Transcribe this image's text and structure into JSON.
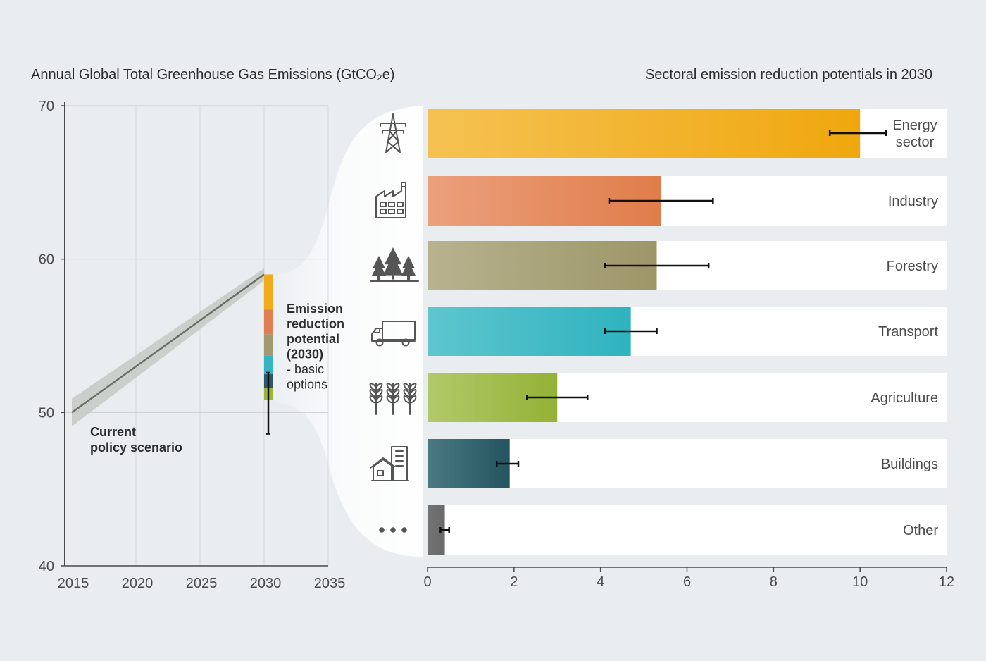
{
  "chart_data": [
    {
      "type": "line",
      "title": "Annual Global Total Greenhouse Gas Emissions (GtCO₂e)",
      "xlim": [
        2015,
        2035
      ],
      "ylim": [
        40,
        70
      ],
      "x_ticks": [
        "2015",
        "2020",
        "2025",
        "2030",
        "2035"
      ],
      "y_ticks": [
        "40",
        "50",
        "60",
        "70"
      ],
      "grid": true,
      "series": [
        {
          "name": "Current policy scenario",
          "x": [
            2015,
            2030
          ],
          "y": [
            50,
            59
          ],
          "band_low": [
            49.1,
            58.6
          ],
          "band_high": [
            50.9,
            59.4
          ]
        }
      ],
      "label_lines": [
        "Current",
        "policy scenario"
      ],
      "stacked_bar": {
        "x": 2030,
        "label_bold_lines": [
          "Emission",
          "reduction",
          "potential",
          "(2030)"
        ],
        "label_normal_lines": [
          "- basic",
          "options"
        ],
        "segments": [
          {
            "sector": "Energy sector",
            "from": 59,
            "to": 56.7,
            "color": "#f2ab1d"
          },
          {
            "sector": "Industry",
            "from": 56.7,
            "to": 55.1,
            "color": "#e07f52"
          },
          {
            "sector": "Forestry",
            "from": 55.1,
            "to": 53.7,
            "color": "#a09a73"
          },
          {
            "sector": "Transport",
            "from": 53.7,
            "to": 52.5,
            "color": "#37b4c1"
          },
          {
            "sector": "Buildings",
            "from": 52.5,
            "to": 51.6,
            "color": "#2b5a66"
          },
          {
            "sector": "Agriculture",
            "from": 51.6,
            "to": 50.8,
            "color": "#9cb43a"
          }
        ],
        "error": [
          48.6,
          52.6
        ]
      }
    },
    {
      "type": "bar",
      "orientation": "horizontal",
      "title": "Sectoral emission reduction potentials in 2030",
      "categories": [
        "Energy sector",
        "Industry",
        "Forestry",
        "Transport",
        "Agriculture",
        "Buildings",
        "Other"
      ],
      "category_lines": [
        [
          "Energy",
          "sector"
        ],
        [
          "Industry"
        ],
        [
          "Forestry"
        ],
        [
          "Transport"
        ],
        [
          "Agriculture"
        ],
        [
          "Buildings"
        ],
        [
          "Other"
        ]
      ],
      "values": [
        10.0,
        5.4,
        5.3,
        4.7,
        3.0,
        1.9,
        0.4
      ],
      "error_low": [
        9.3,
        4.2,
        4.1,
        4.1,
        2.3,
        1.6,
        0.3
      ],
      "error_high": [
        10.6,
        6.6,
        6.5,
        5.3,
        3.7,
        2.1,
        0.5
      ],
      "icons": [
        "power-pylon-icon",
        "factory-icon",
        "trees-icon",
        "truck-icon",
        "wheat-icon",
        "building-house-icon",
        "ellipsis-icon"
      ],
      "colors": [
        [
          "#f5c252",
          "#f0a70e"
        ],
        [
          "#eba07d",
          "#e07d4a"
        ],
        [
          "#b8b28f",
          "#9c9668"
        ],
        [
          "#5ec6ce",
          "#2fb3c0"
        ],
        [
          "#b3c96a",
          "#93b236"
        ],
        [
          "#4a7982",
          "#24545e"
        ],
        [
          "#737373",
          "#6a6a6a"
        ]
      ],
      "xlim": [
        0,
        12
      ],
      "x_ticks": [
        "0",
        "2",
        "4",
        "6",
        "8",
        "10",
        "12"
      ]
    }
  ]
}
